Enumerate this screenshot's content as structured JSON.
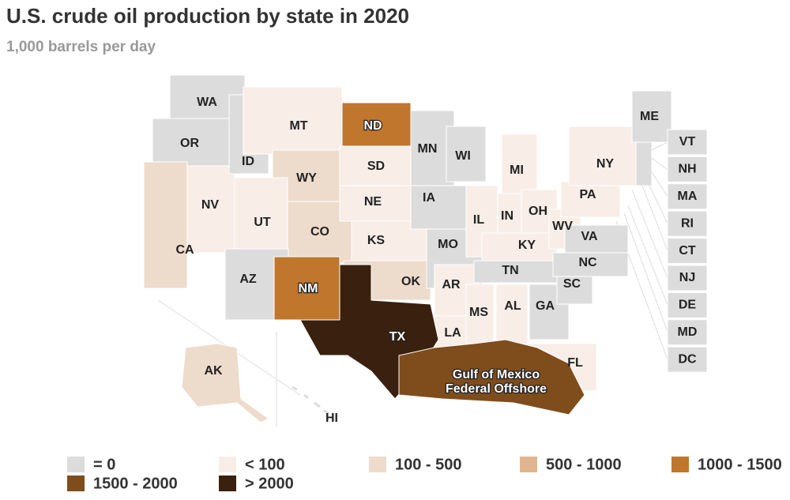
{
  "header": {
    "title": "U.S. crude oil production by state in 2020",
    "subtitle": "1,000 barrels per day"
  },
  "legend": [
    {
      "label": "= 0",
      "color": "#dcdcdc"
    },
    {
      "label": "< 100",
      "color": "#f8ede7"
    },
    {
      "label": "100 - 500",
      "color": "#eddbcc"
    },
    {
      "label": "500 - 1000",
      "color": "#dfb590"
    },
    {
      "label": "1000 - 1500",
      "color": "#c0762d"
    },
    {
      "label": "1500 - 2000",
      "color": "#7f4c1c"
    },
    {
      "label": "> 2000",
      "color": "#3a200e"
    }
  ],
  "states": [
    {
      "label": "WA",
      "color": "#dcdcdc"
    },
    {
      "label": "OR",
      "color": "#dcdcdc"
    },
    {
      "label": "CA",
      "color": "#eddbcc"
    },
    {
      "label": "NV",
      "color": "#f8ede7"
    },
    {
      "label": "ID",
      "color": "#dcdcdc"
    },
    {
      "label": "MT",
      "color": "#f8ede7"
    },
    {
      "label": "WY",
      "color": "#eddbcc"
    },
    {
      "label": "UT",
      "color": "#f8ede7"
    },
    {
      "label": "CO",
      "color": "#eddbcc"
    },
    {
      "label": "AZ",
      "color": "#dcdcdc"
    },
    {
      "label": "NM",
      "color": "#c0762d"
    },
    {
      "label": "ND",
      "color": "#c0762d"
    },
    {
      "label": "SD",
      "color": "#f8ede7"
    },
    {
      "label": "NE",
      "color": "#f8ede7"
    },
    {
      "label": "KS",
      "color": "#f8ede7"
    },
    {
      "label": "OK",
      "color": "#eddbcc"
    },
    {
      "label": "MN",
      "color": "#dcdcdc"
    },
    {
      "label": "WI",
      "color": "#dcdcdc"
    },
    {
      "label": "IA",
      "color": "#dcdcdc"
    },
    {
      "label": "MO",
      "color": "#dcdcdc"
    },
    {
      "label": "AR",
      "color": "#f8ede7"
    },
    {
      "label": "LA",
      "color": "#f8ede7"
    },
    {
      "label": "IL",
      "color": "#f8ede7"
    },
    {
      "label": "MI",
      "color": "#f8ede7"
    },
    {
      "label": "IN",
      "color": "#f8ede7"
    },
    {
      "label": "OH",
      "color": "#f8ede7"
    },
    {
      "label": "KY",
      "color": "#f8ede7"
    },
    {
      "label": "TN",
      "color": "#dcdcdc"
    },
    {
      "label": "MS",
      "color": "#f8ede7"
    },
    {
      "label": "AL",
      "color": "#f8ede7"
    },
    {
      "label": "GA",
      "color": "#dcdcdc"
    },
    {
      "label": "FL",
      "color": "#f8ede7"
    },
    {
      "label": "SC",
      "color": "#dcdcdc"
    },
    {
      "label": "NC",
      "color": "#dcdcdc"
    },
    {
      "label": "WV",
      "color": "#f8ede7"
    },
    {
      "label": "VA",
      "color": "#dcdcdc"
    },
    {
      "label": "PA",
      "color": "#f8ede7"
    },
    {
      "label": "NY",
      "color": "#f8ede7"
    },
    {
      "label": "ME",
      "color": "#dcdcdc"
    },
    {
      "label": "TX",
      "color": "#3a200e"
    },
    {
      "label": [
        "Gulf of Mexico",
        "Federal Offshore"
      ],
      "color": "#7f4c1c"
    },
    {
      "label": "AK",
      "color": "#eddbcc"
    },
    {
      "label": "HI"
    },
    {
      "label": "VT",
      "color": "#dcdcdc"
    },
    {
      "label": "NH",
      "color": "#dcdcdc"
    },
    {
      "label": "MA",
      "color": "#dcdcdc"
    },
    {
      "label": "RI",
      "color": "#dcdcdc"
    },
    {
      "label": "CT",
      "color": "#dcdcdc"
    },
    {
      "label": "NJ",
      "color": "#dcdcdc"
    },
    {
      "label": "DE",
      "color": "#dcdcdc"
    },
    {
      "label": "MD",
      "color": "#dcdcdc"
    },
    {
      "label": "DC",
      "color": "#dcdcdc"
    }
  ]
}
